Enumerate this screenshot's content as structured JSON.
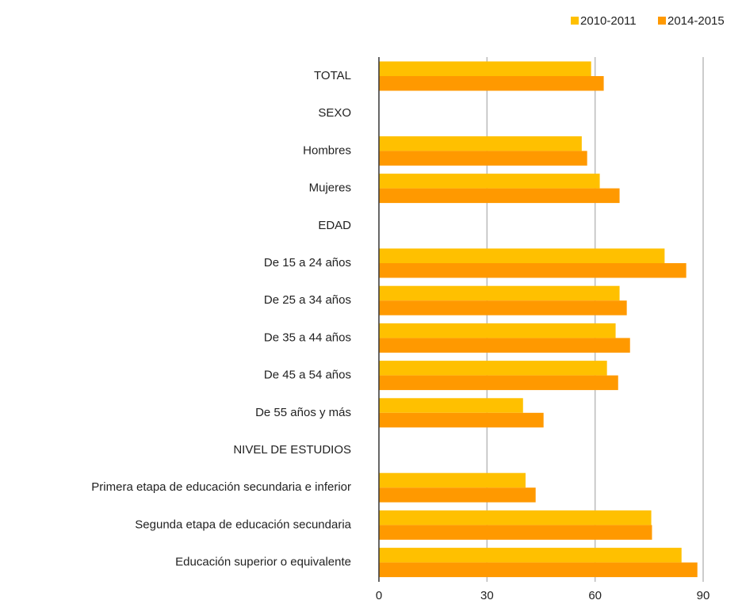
{
  "chart_data": {
    "type": "bar",
    "orientation": "horizontal",
    "categories": [
      "TOTAL",
      "SEXO",
      "Hombres",
      "Mujeres",
      "EDAD",
      "De 15 a 24 años",
      "De 25 a 34 años",
      "De 35 a 44 años",
      "De 45 a 54 años",
      "De 55 años y más",
      "NIVEL DE ESTUDIOS",
      "Primera etapa de educación secundaria e inferior",
      "Segunda etapa de educación secundaria",
      "Educación superior o equivalente"
    ],
    "series": [
      {
        "name": "2010-2011",
        "color": "#ffc000",
        "values": [
          58.9,
          null,
          56.3,
          61.3,
          null,
          79.3,
          66.8,
          65.7,
          63.3,
          40.0,
          null,
          40.7,
          75.6,
          84.0
        ]
      },
      {
        "name": "2014-2015",
        "color": "#ff9900",
        "values": [
          62.4,
          null,
          57.8,
          66.8,
          null,
          85.3,
          68.8,
          69.7,
          66.4,
          45.7,
          null,
          43.5,
          75.8,
          88.4
        ]
      }
    ],
    "xlim": [
      0,
      90
    ],
    "xticks": [
      0,
      30,
      60,
      90
    ],
    "grid": true,
    "legend": "top-right"
  }
}
